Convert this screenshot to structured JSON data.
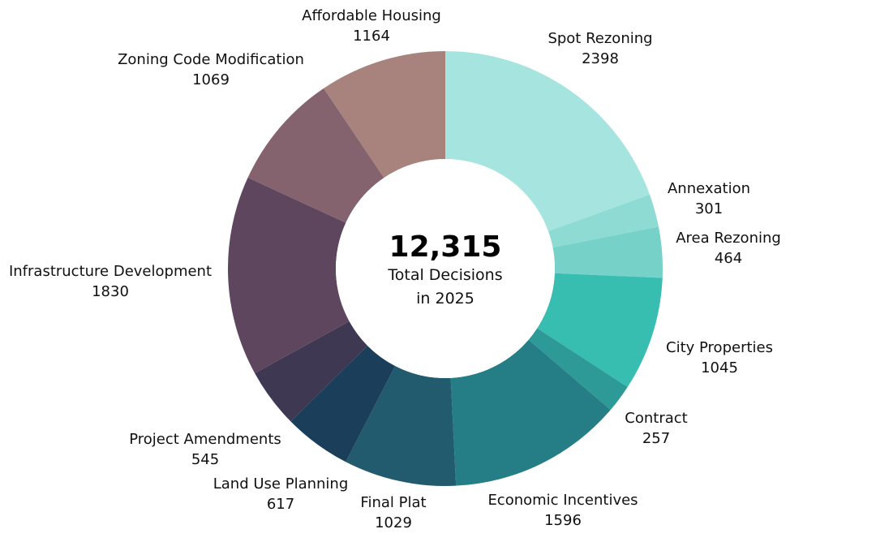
{
  "chart_data": {
    "type": "pie",
    "variant": "donut",
    "center_text": {
      "total": "12,315",
      "line1": "Total Decisions",
      "line2": "in 2025"
    },
    "slices": [
      {
        "label": "Spot Rezoning",
        "value": 2398,
        "color": "#a6e5df"
      },
      {
        "label": "Annexation",
        "value": 301,
        "color": "#8edbd4"
      },
      {
        "label": "Area Rezoning",
        "value": 464,
        "color": "#76d1c8"
      },
      {
        "label": "City Properties",
        "value": 1045,
        "color": "#38bdb1"
      },
      {
        "label": "Contract",
        "value": 257,
        "color": "#2e9a97"
      },
      {
        "label": "Economic Incentives",
        "value": 1596,
        "color": "#257e86"
      },
      {
        "label": "Final Plat",
        "value": 1029,
        "color": "#225b6e"
      },
      {
        "label": "Land Use Planning",
        "value": 617,
        "color": "#1b3f5a"
      },
      {
        "label": "Project Amendments",
        "value": 545,
        "color": "#3f3853"
      },
      {
        "label": "Infrastructure Development",
        "value": 1830,
        "color": "#5f465f"
      },
      {
        "label": "Zoning Code Modification",
        "value": 1069,
        "color": "#84636f"
      },
      {
        "label": "Affordable Housing",
        "value": 1164,
        "color": "#a8837d"
      }
    ],
    "legend": "none",
    "direction": "clockwise from top"
  }
}
